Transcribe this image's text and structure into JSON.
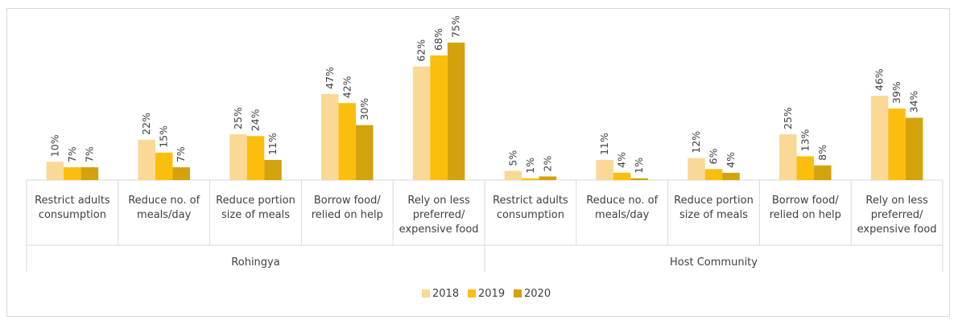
{
  "chart_data": {
    "type": "bar",
    "groups": [
      {
        "name": "Rohingya",
        "categories": [
          [
            "Restrict adults",
            "consumption"
          ],
          [
            "Reduce no. of",
            "meals/day"
          ],
          [
            "Reduce portion",
            "size of meals"
          ],
          [
            "Borrow food/",
            "relied on help"
          ],
          [
            "Rely on less",
            "preferred/",
            "expensive food"
          ]
        ],
        "series": [
          {
            "name": "2018",
            "values": [
              10,
              22,
              25,
              47,
              62
            ]
          },
          {
            "name": "2019",
            "values": [
              7,
              15,
              24,
              42,
              68
            ]
          },
          {
            "name": "2020",
            "values": [
              7,
              7,
              11,
              30,
              75
            ]
          }
        ]
      },
      {
        "name": "Host Community",
        "categories": [
          [
            "Restrict adults",
            "consumption"
          ],
          [
            "Reduce no. of",
            "meals/day"
          ],
          [
            "Reduce portion",
            "size of meals"
          ],
          [
            "Borrow food/",
            "relied on help"
          ],
          [
            "Rely on less",
            "preferred/",
            "expensive food"
          ]
        ],
        "series": [
          {
            "name": "2018",
            "values": [
              5,
              11,
              12,
              25,
              46
            ]
          },
          {
            "name": "2019",
            "values": [
              1,
              4,
              6,
              13,
              39
            ]
          },
          {
            "name": "2020",
            "values": [
              2,
              1,
              4,
              8,
              34
            ]
          }
        ]
      }
    ],
    "value_suffix": "%",
    "legend": [
      "2018",
      "2019",
      "2020"
    ],
    "legend_position": "bottom",
    "colors": {
      "2018": "#fad896",
      "2019": "#fbbe0c",
      "2020": "#d3a20c"
    },
    "grid": false
  }
}
